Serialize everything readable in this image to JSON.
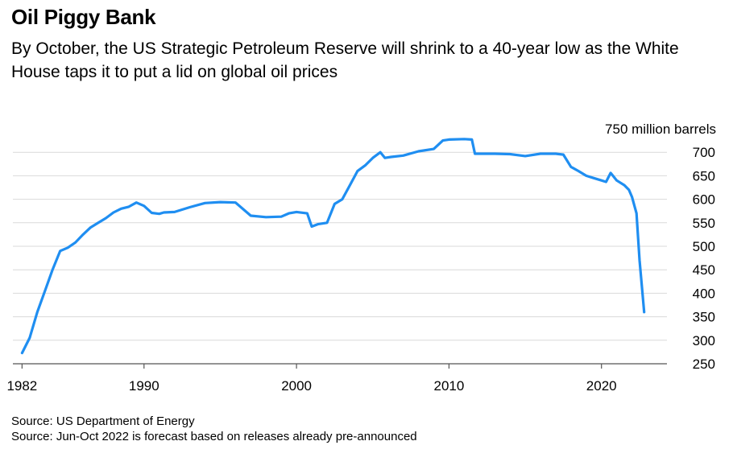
{
  "title": "Oil Piggy Bank",
  "subtitle": "By October, the US Strategic Petroleum Reserve will shrink to a 40-year low as the White House taps it to put a lid on global oil prices",
  "sources": [
    "Source: US Department of Energy",
    "Source: Jun-Oct 2022 is forecast based on releases already pre-announced"
  ],
  "colors": {
    "line": "#1f8ef1",
    "grid": "#d9d9d9",
    "axis": "#555555"
  },
  "chart_data": {
    "type": "line",
    "title": "Oil Piggy Bank",
    "xlabel": "",
    "ylabel": "750 million barrels",
    "unit_label": "750 million barrels",
    "xlim": [
      1981.4,
      2024.4
    ],
    "ylim": [
      250,
      750
    ],
    "y_ticks": [
      250,
      300,
      350,
      400,
      450,
      500,
      550,
      600,
      650,
      700
    ],
    "y_tick_labels": [
      "250",
      "300",
      "350",
      "400",
      "450",
      "500",
      "550",
      "600",
      "650",
      "700"
    ],
    "x_ticks": [
      1982,
      1990,
      2000,
      2010,
      2020
    ],
    "x_tick_labels": [
      "1982",
      "1990",
      "2000",
      "2010",
      "2020"
    ],
    "grid": "horizontal",
    "y_axis_position": "right",
    "series": [
      {
        "x": [
          1982.0,
          1982.5,
          1983.0,
          1983.5,
          1984.0,
          1984.5,
          1985.0,
          1985.5,
          1986.0,
          1986.5,
          1987.0,
          1987.5,
          1988.0,
          1988.5,
          1989.0,
          1989.5,
          1990.0,
          1990.5,
          1991.0,
          1991.3,
          1992.0,
          1993.0,
          1994.0,
          1995.0,
          1996.0,
          1997.0,
          1998.0,
          1999.0,
          1999.5,
          2000.0,
          2000.7,
          2001.0,
          2001.4,
          2002.0,
          2002.5,
          2003.0,
          2003.5,
          2004.0,
          2004.5,
          2005.0,
          2005.5,
          2005.8,
          2006.2,
          2007.0,
          2008.0,
          2009.0,
          2009.6,
          2010.0,
          2011.0,
          2011.5,
          2011.7,
          2012.0,
          2013.0,
          2014.0,
          2015.0,
          2016.0,
          2017.0,
          2017.5,
          2018.0,
          2018.5,
          2019.0,
          2019.5,
          2020.0,
          2020.3,
          2020.6,
          2021.0,
          2021.5,
          2021.8,
          2022.0,
          2022.3,
          2022.5,
          2022.8
        ],
        "y": [
          273,
          305,
          360,
          405,
          450,
          490,
          497,
          508,
          525,
          540,
          550,
          560,
          572,
          580,
          584,
          593,
          586,
          571,
          569,
          572,
          573,
          583,
          592,
          594,
          593,
          565,
          562,
          563,
          570,
          573,
          570,
          542,
          547,
          550,
          590,
          600,
          630,
          660,
          672,
          688,
          700,
          688,
          690,
          693,
          702,
          707,
          725,
          727,
          728,
          727,
          697,
          697,
          697,
          696,
          692,
          697,
          697,
          695,
          669,
          660,
          650,
          645,
          640,
          637,
          656,
          640,
          630,
          620,
          605,
          570,
          470,
          360
        ]
      }
    ]
  }
}
